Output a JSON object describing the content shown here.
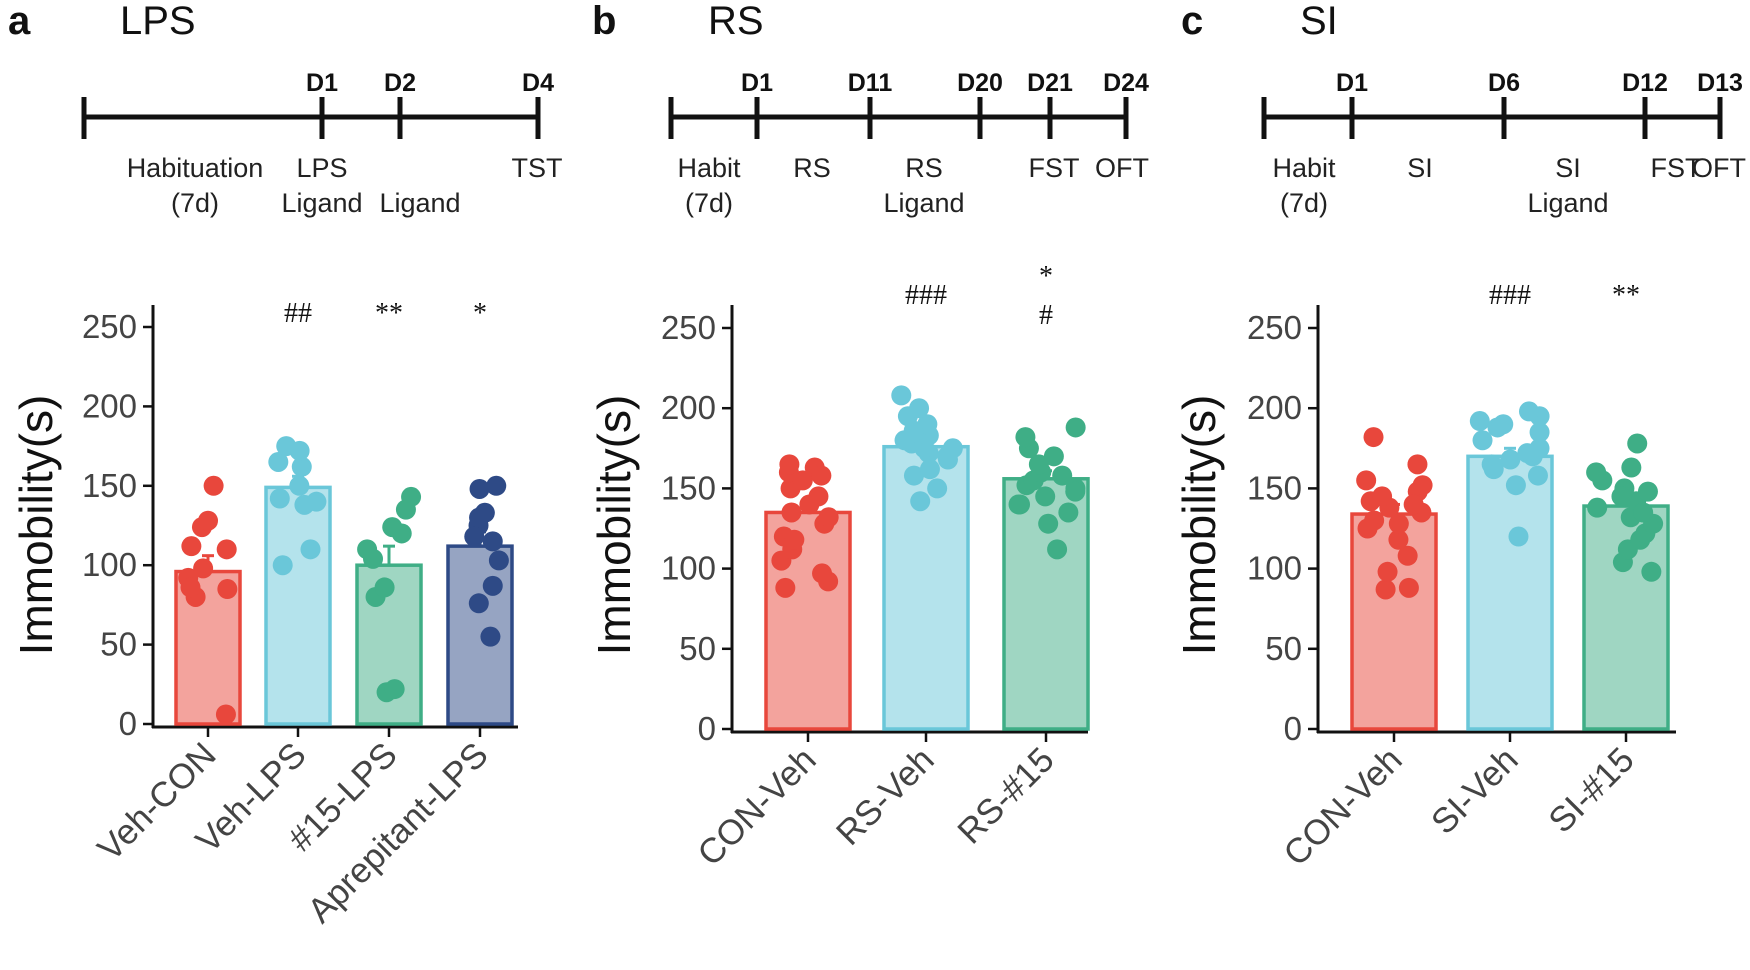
{
  "colors": {
    "Veh-CON": "#e8473c",
    "Veh-LPS": "#6ac7d9",
    "#15-LPS": "#3fae86",
    "Aprepitant-LPS": "#2e4a86",
    "CON-Veh": "#e8473c",
    "RS-Veh": "#6ac7d9",
    "RS-#15": "#3fae86",
    "SI-Veh": "#6ac7d9",
    "SI-#15": "#3fae86"
  },
  "chart_data": [
    {
      "panel": "a",
      "title": "LPS",
      "type": "bar",
      "timeline": {
        "days": [
          "D1",
          "D2",
          "D4"
        ],
        "phases": [
          [
            "Habituation",
            "(7d)"
          ],
          [
            "LPS",
            "Ligand"
          ],
          [
            "Ligand"
          ],
          [
            "TST"
          ]
        ]
      },
      "ylabel": "Immobility(s)",
      "ylim": [
        0,
        250
      ],
      "yticks": [
        0,
        50,
        100,
        150,
        200,
        250
      ],
      "categories": [
        "Veh-CON",
        "Veh-LPS",
        "#15-LPS",
        "Aprepitant-LPS"
      ],
      "values": [
        96,
        149,
        100,
        112
      ],
      "sem": [
        10,
        7,
        12,
        9
      ],
      "significance": [
        [],
        [
          "##"
        ],
        [
          "**"
        ],
        [
          "*"
        ]
      ],
      "points": [
        [
          6,
          85,
          92,
          98,
          110,
          112,
          124,
          128,
          150,
          80,
          86
        ],
        [
          100,
          110,
          138,
          140,
          150,
          162,
          165,
          172,
          175,
          142
        ],
        [
          20,
          22,
          80,
          86,
          104,
          110,
          120,
          124,
          135,
          143
        ],
        [
          55,
          76,
          87,
          103,
          115,
          125,
          130,
          133,
          148,
          150,
          118
        ]
      ]
    },
    {
      "panel": "b",
      "title": "RS",
      "type": "bar",
      "timeline": {
        "days": [
          "D1",
          "D11",
          "D20",
          "D21",
          "D24"
        ],
        "phases": [
          [
            "Habit",
            "(7d)"
          ],
          [
            "RS"
          ],
          [
            "RS",
            "Ligand"
          ],
          [
            "FST"
          ],
          [
            "OFT"
          ]
        ]
      },
      "ylabel": "Immobility(s)",
      "ylim": [
        0,
        250
      ],
      "yticks": [
        0,
        50,
        100,
        150,
        200,
        250
      ],
      "categories": [
        "CON-Veh",
        "RS-Veh",
        "RS-#15"
      ],
      "values": [
        135,
        176,
        156
      ],
      "sem": [
        6,
        4,
        5
      ],
      "significance": [
        [],
        [
          "###"
        ],
        [
          "*",
          "#"
        ]
      ],
      "points": [
        [
          88,
          92,
          97,
          105,
          112,
          120,
          128,
          135,
          140,
          145,
          150,
          155,
          160,
          163,
          165,
          158,
          132,
          118
        ],
        [
          142,
          150,
          158,
          162,
          168,
          172,
          175,
          178,
          180,
          183,
          186,
          190,
          195,
          200,
          208,
          170,
          175
        ],
        [
          112,
          128,
          135,
          140,
          145,
          150,
          152,
          155,
          158,
          160,
          165,
          170,
          175,
          182,
          188,
          148,
          140
        ]
      ]
    },
    {
      "panel": "c",
      "title": "SI",
      "type": "bar",
      "timeline": {
        "days": [
          "D1",
          "D6",
          "D12",
          "D13"
        ],
        "phases": [
          [
            "Habit",
            "(7d)"
          ],
          [
            "SI"
          ],
          [
            "SI",
            "Ligand"
          ],
          [
            "FST"
          ],
          [
            "OFT"
          ]
        ]
      },
      "ylabel": "Immobility(s)",
      "ylim": [
        0,
        250
      ],
      "yticks": [
        0,
        50,
        100,
        150,
        200,
        250
      ],
      "categories": [
        "CON-Veh",
        "SI-Veh",
        "SI-#15"
      ],
      "values": [
        134,
        170,
        139
      ],
      "sem": [
        6,
        5,
        5
      ],
      "significance": [
        [],
        [
          "###"
        ],
        [
          "**"
        ]
      ],
      "points": [
        [
          87,
          88,
          98,
          108,
          118,
          125,
          130,
          135,
          138,
          142,
          145,
          148,
          152,
          155,
          165,
          182,
          128,
          140
        ],
        [
          120,
          152,
          158,
          162,
          165,
          168,
          170,
          175,
          180,
          185,
          190,
          192,
          195,
          198,
          172,
          188
        ],
        [
          98,
          104,
          112,
          118,
          122,
          128,
          132,
          138,
          142,
          148,
          150,
          155,
          160,
          163,
          178,
          145,
          135
        ]
      ]
    }
  ]
}
